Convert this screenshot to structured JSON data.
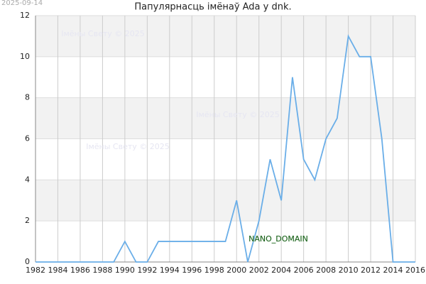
{
  "chart_data": {
    "type": "line",
    "title": "Папулярнасць імёнаў Ada у dnk.",
    "date": "2025-09-14",
    "watermarks": [
      "Імёны Свету © 2025",
      "Імёны Свету © 2025",
      "Імёны Свету © 2025"
    ],
    "annotation": "NANO_DOMAIN",
    "x": [
      1982,
      1983,
      1984,
      1985,
      1986,
      1987,
      1988,
      1989,
      1990,
      1991,
      1992,
      1993,
      1994,
      1995,
      1996,
      1997,
      1998,
      1999,
      2000,
      2001,
      2002,
      2003,
      2004,
      2005,
      2006,
      2007,
      2008,
      2009,
      2010,
      2011,
      2012,
      2013,
      2014,
      2015,
      2016
    ],
    "series": [
      {
        "color": "#6aaee8",
        "values": [
          0,
          0,
          0,
          0,
          0,
          0,
          0,
          0,
          1,
          0,
          0,
          1,
          1,
          1,
          1,
          1,
          1,
          1,
          3,
          0,
          2,
          5,
          3,
          9,
          5,
          4,
          6,
          7,
          11,
          10,
          10,
          6,
          0,
          0,
          0
        ]
      }
    ],
    "xlim": [
      1982,
      2016
    ],
    "xticks": [
      1982,
      1984,
      1986,
      1988,
      1990,
      1992,
      1994,
      1996,
      1998,
      2000,
      2002,
      2004,
      2006,
      2008,
      2010,
      2012,
      2014,
      2016
    ],
    "ylim": [
      0,
      12
    ],
    "yticks": [
      0,
      2,
      4,
      6,
      8,
      10,
      12
    ],
    "grid": true
  }
}
